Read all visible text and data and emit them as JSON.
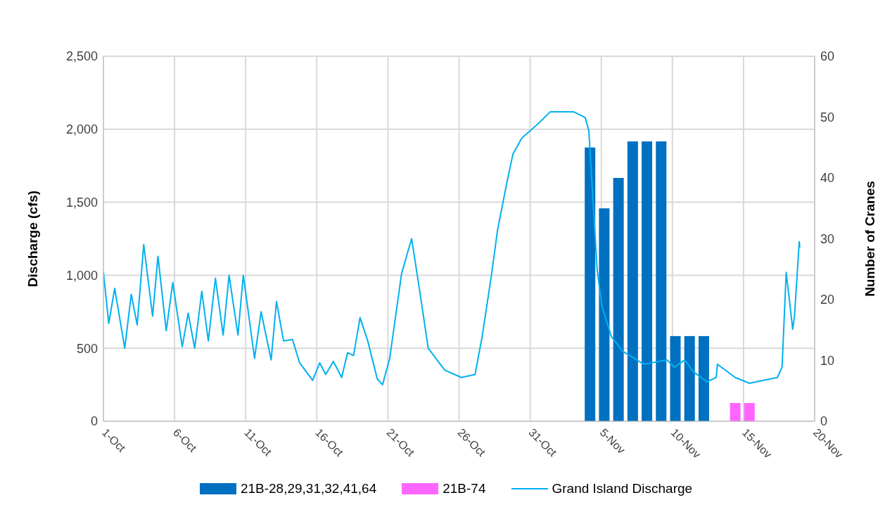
{
  "chart_data": {
    "type": "bar",
    "ylabel": "Discharge (cfs)",
    "y2label": "Number of Cranes",
    "xlim": [
      "--10-01",
      "--11-20"
    ],
    "xticks": [
      {
        "value": "--10-01",
        "label": "1-Oct"
      },
      {
        "value": "--10-06",
        "label": "6-Oct"
      },
      {
        "value": "--10-11",
        "label": "11-Oct"
      },
      {
        "value": "--10-16",
        "label": "16-Oct"
      },
      {
        "value": "--10-21",
        "label": "21-Oct"
      },
      {
        "value": "--10-26",
        "label": "26-Oct"
      },
      {
        "value": "--10-31",
        "label": "31-Oct"
      },
      {
        "value": "--11-05",
        "label": "5-Nov"
      },
      {
        "value": "--11-10",
        "label": "10-Nov"
      },
      {
        "value": "--11-15",
        "label": "15-Nov"
      },
      {
        "value": "--11-20",
        "label": "20-Nov"
      }
    ],
    "ylim": [
      0,
      2500
    ],
    "yticks": [
      0,
      {
        "value": 500,
        "label": "500"
      },
      {
        "value": 1000,
        "label": "1,000"
      },
      {
        "value": 1500,
        "label": "1,500"
      },
      {
        "value": 2000,
        "label": "2,000"
      },
      {
        "value": 2500,
        "label": "2,500"
      }
    ],
    "y2lim": [
      0,
      60
    ],
    "y2ticks": [
      0,
      10,
      20,
      30,
      40,
      50,
      60
    ],
    "grid": true,
    "legend": "bottom",
    "series": [
      {
        "name": "21B-28,29,31,32,41,64",
        "axis": "y2",
        "color": "#0070c0",
        "x": [
          "--11-04T05:00",
          "--11-05T05:00",
          "--11-06T05:00",
          "--11-07T05:00",
          "--11-08T05:00",
          "--11-09T05:00",
          "--11-10T05:00",
          "--11-11T05:00",
          "--11-12T05:00"
        ],
        "values": [
          45,
          35,
          40,
          46,
          46,
          46,
          14,
          14,
          14
        ]
      },
      {
        "name": "21B-74",
        "axis": "y2",
        "color": "#ff66ff",
        "x": [
          "--11-14T10:00",
          "--11-15T10:00"
        ],
        "values": [
          3,
          3
        ]
      },
      {
        "name": "Grand Island Discharge",
        "type": "line",
        "color": "#00b0f0",
        "x": [
          "--10-01T00:00",
          "--10-01T09:00",
          "--10-01T19:00",
          "--10-02T12:00",
          "--10-02T23:00",
          "--10-03T09:00",
          "--10-03T20:00",
          "--10-04T11:00",
          "--10-04T20:00",
          "--10-05T10:00",
          "--10-05T21:00",
          "--10-06T13:00",
          "--10-06T23:00",
          "--10-07T10:00",
          "--10-07T22:00",
          "--10-08T09:00",
          "--10-08T21:00",
          "--10-09T10:00",
          "--10-09T20:00",
          "--10-10T11:00",
          "--10-10T20:00",
          "--10-11T15:00",
          "--10-12T02:00",
          "--10-12T19:00",
          "--10-13T04:00",
          "--10-13T16:00",
          "--10-14T07:00",
          "--10-14T19:00",
          "--10-15T17:00",
          "--10-16T05:00",
          "--10-16T15:00",
          "--10-17T04:00",
          "--10-17T18:00",
          "--10-18T04:00",
          "--10-18T14:00",
          "--10-19T01:00",
          "--10-19T14:00",
          "--10-20T06:00",
          "--10-20T15:00",
          "--10-21T03:00",
          "--10-21T13:00",
          "--10-21T23:00",
          "--10-22T16:00",
          "--10-23T05:00",
          "--10-23T20:00",
          "--10-25T00:00",
          "--10-26T04:00",
          "--10-27T03:00",
          "--10-27T15:00",
          "--10-28T07:00",
          "--10-28T17:00",
          "--10-29T09:00",
          "--10-29T19:00",
          "--10-30T10:00",
          "--10-31T14:00",
          "--11-01T10:00",
          "--11-03T01:00",
          "--11-03T21:00",
          "--11-04T03:00",
          "--11-04T17:00",
          "--11-05T01:00",
          "--11-05T17:00",
          "--11-06T12:00",
          "--11-08T00:00",
          "--11-09T15:00",
          "--11-10T03:00",
          "--11-10T21:00",
          "--11-11T11:00",
          "--11-12T10:00",
          "--11-13T02:00",
          "--11-13T04:00",
          "--11-14T10:00",
          "--11-15T10:00",
          "--11-17T09:00",
          "--11-17T17:00",
          "--11-18T00:00",
          "--11-18T11:00",
          "--11-18T14:00",
          "--11-18T22:00",
          "--11-18T23:00"
        ],
        "values": [
          1020,
          670,
          910,
          500,
          870,
          660,
          1210,
          720,
          1130,
          620,
          950,
          510,
          740,
          500,
          890,
          550,
          980,
          590,
          1000,
          590,
          1000,
          430,
          750,
          420,
          820,
          550,
          560,
          400,
          280,
          400,
          320,
          410,
          300,
          470,
          450,
          710,
          550,
          290,
          250,
          430,
          720,
          1010,
          1250,
          910,
          500,
          350,
          300,
          320,
          580,
          1010,
          1310,
          1640,
          1830,
          1940,
          2040,
          2120,
          2120,
          2080,
          1990,
          1040,
          790,
          580,
          480,
          390,
          420,
          370,
          420,
          340,
          270,
          300,
          390,
          300,
          260,
          300,
          370,
          1020,
          630,
          720,
          1230,
          1190
        ]
      }
    ]
  }
}
